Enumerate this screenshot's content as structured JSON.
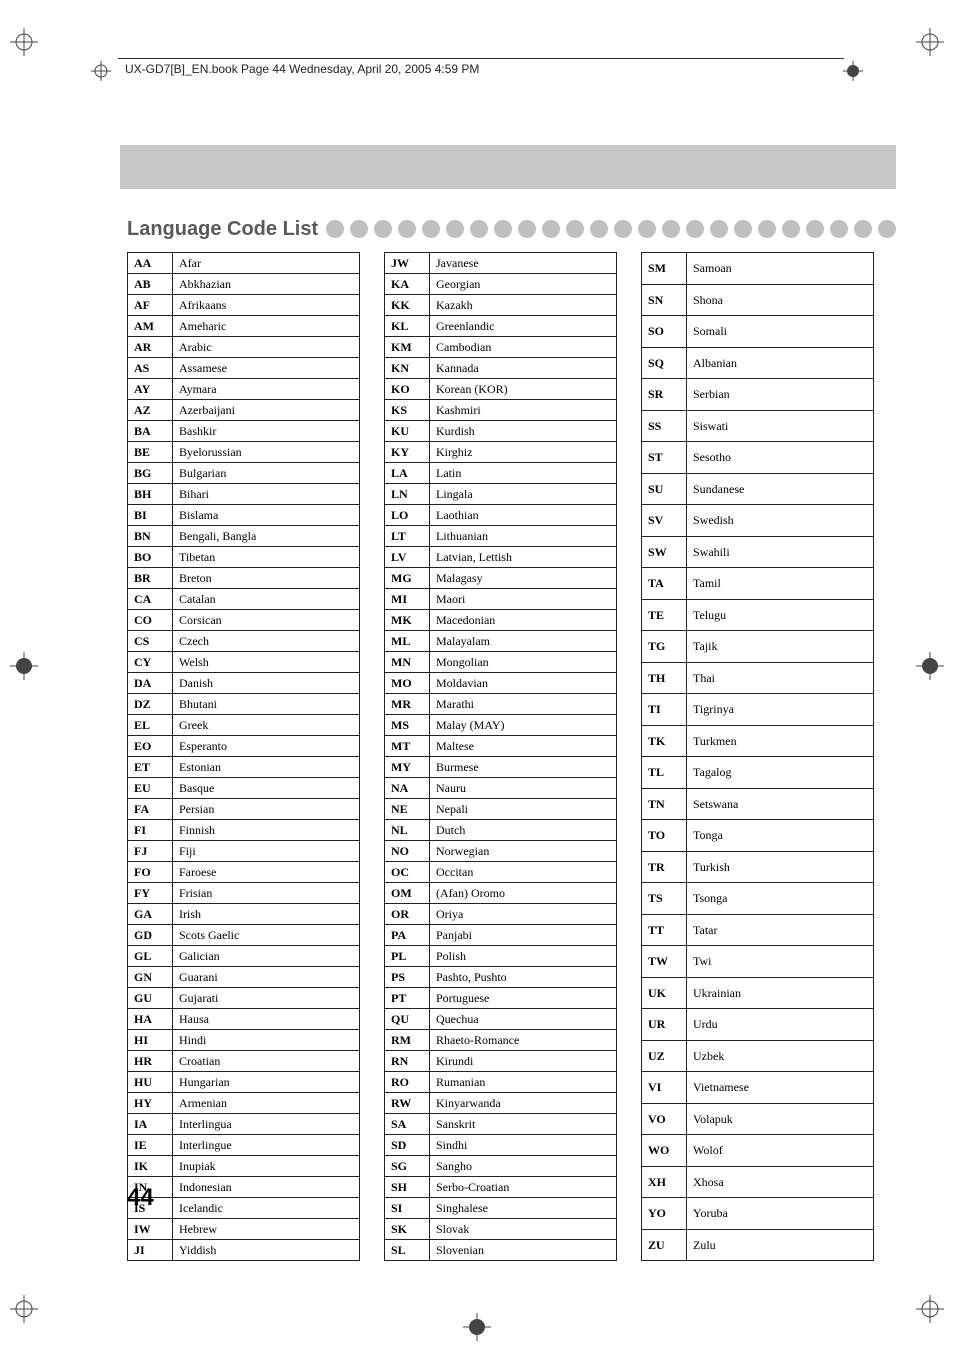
{
  "header_text": "UX-GD7[B]_EN.book   Page 44   Wednesday, April 20, 2005   4:59 PM",
  "section_title": "Language Code List",
  "page_number": "44",
  "tables": [
    {
      "rows": [
        {
          "code": "AA",
          "name": "Afar"
        },
        {
          "code": "AB",
          "name": "Abkhazian"
        },
        {
          "code": "AF",
          "name": "Afrikaans"
        },
        {
          "code": "AM",
          "name": "Ameharic"
        },
        {
          "code": "AR",
          "name": "Arabic"
        },
        {
          "code": "AS",
          "name": "Assamese"
        },
        {
          "code": "AY",
          "name": "Aymara"
        },
        {
          "code": "AZ",
          "name": "Azerbaijani"
        },
        {
          "code": "BA",
          "name": "Bashkir"
        },
        {
          "code": "BE",
          "name": "Byelorussian"
        },
        {
          "code": "BG",
          "name": "Bulgarian"
        },
        {
          "code": "BH",
          "name": "Bihari"
        },
        {
          "code": "BI",
          "name": "Bislama"
        },
        {
          "code": "BN",
          "name": "Bengali, Bangla"
        },
        {
          "code": "BO",
          "name": "Tibetan"
        },
        {
          "code": "BR",
          "name": "Breton"
        },
        {
          "code": "CA",
          "name": "Catalan"
        },
        {
          "code": "CO",
          "name": "Corsican"
        },
        {
          "code": "CS",
          "name": "Czech"
        },
        {
          "code": "CY",
          "name": "Welsh"
        },
        {
          "code": "DA",
          "name": "Danish"
        },
        {
          "code": "DZ",
          "name": "Bhutani"
        },
        {
          "code": "EL",
          "name": "Greek"
        },
        {
          "code": "EO",
          "name": "Esperanto"
        },
        {
          "code": "ET",
          "name": "Estonian"
        },
        {
          "code": "EU",
          "name": "Basque"
        },
        {
          "code": "FA",
          "name": "Persian"
        },
        {
          "code": "FI",
          "name": "Finnish"
        },
        {
          "code": "FJ",
          "name": "Fiji"
        },
        {
          "code": "FO",
          "name": "Faroese"
        },
        {
          "code": "FY",
          "name": "Frisian"
        },
        {
          "code": "GA",
          "name": "Irish"
        },
        {
          "code": "GD",
          "name": "Scots Gaelic"
        },
        {
          "code": "GL",
          "name": "Galician"
        },
        {
          "code": "GN",
          "name": "Guarani"
        },
        {
          "code": "GU",
          "name": "Gujarati"
        },
        {
          "code": "HA",
          "name": "Hausa"
        },
        {
          "code": "HI",
          "name": "Hindi"
        },
        {
          "code": "HR",
          "name": "Croatian"
        },
        {
          "code": "HU",
          "name": "Hungarian"
        },
        {
          "code": "HY",
          "name": "Armenian"
        },
        {
          "code": "IA",
          "name": "Interlingua"
        },
        {
          "code": "IE",
          "name": "Interlingue"
        },
        {
          "code": "IK",
          "name": "Inupiak"
        },
        {
          "code": "IN",
          "name": "Indonesian"
        },
        {
          "code": "IS",
          "name": "Icelandic"
        },
        {
          "code": "IW",
          "name": "Hebrew"
        },
        {
          "code": "JI",
          "name": "Yiddish"
        }
      ]
    },
    {
      "rows": [
        {
          "code": "JW",
          "name": "Javanese"
        },
        {
          "code": "KA",
          "name": "Georgian"
        },
        {
          "code": "KK",
          "name": "Kazakh"
        },
        {
          "code": "KL",
          "name": "Greenlandic"
        },
        {
          "code": "KM",
          "name": "Cambodian"
        },
        {
          "code": "KN",
          "name": "Kannada"
        },
        {
          "code": "KO",
          "name": "Korean (KOR)"
        },
        {
          "code": "KS",
          "name": "Kashmiri"
        },
        {
          "code": "KU",
          "name": "Kurdish"
        },
        {
          "code": "KY",
          "name": "Kirghiz"
        },
        {
          "code": "LA",
          "name": "Latin"
        },
        {
          "code": "LN",
          "name": "Lingala"
        },
        {
          "code": "LO",
          "name": "Laothian"
        },
        {
          "code": "LT",
          "name": "Lithuanian"
        },
        {
          "code": "LV",
          "name": "Latvian, Lettish"
        },
        {
          "code": "MG",
          "name": "Malagasy"
        },
        {
          "code": "MI",
          "name": "Maori"
        },
        {
          "code": "MK",
          "name": "Macedonian"
        },
        {
          "code": "ML",
          "name": "Malayalam"
        },
        {
          "code": "MN",
          "name": "Mongolian"
        },
        {
          "code": "MO",
          "name": "Moldavian"
        },
        {
          "code": "MR",
          "name": "Marathi"
        },
        {
          "code": "MS",
          "name": "Malay (MAY)"
        },
        {
          "code": "MT",
          "name": "Maltese"
        },
        {
          "code": "MY",
          "name": "Burmese"
        },
        {
          "code": "NA",
          "name": "Nauru"
        },
        {
          "code": "NE",
          "name": "Nepali"
        },
        {
          "code": "NL",
          "name": "Dutch"
        },
        {
          "code": "NO",
          "name": "Norwegian"
        },
        {
          "code": "OC",
          "name": "Occitan"
        },
        {
          "code": "OM",
          "name": "(Afan) Oromo"
        },
        {
          "code": "OR",
          "name": "Oriya"
        },
        {
          "code": "PA",
          "name": "Panjabi"
        },
        {
          "code": "PL",
          "name": "Polish"
        },
        {
          "code": "PS",
          "name": "Pashto, Pushto"
        },
        {
          "code": "PT",
          "name": "Portuguese"
        },
        {
          "code": "QU",
          "name": "Quechua"
        },
        {
          "code": "RM",
          "name": "Rhaeto-Romance"
        },
        {
          "code": "RN",
          "name": "Kirundi"
        },
        {
          "code": "RO",
          "name": "Rumanian"
        },
        {
          "code": "RW",
          "name": "Kinyarwanda"
        },
        {
          "code": "SA",
          "name": "Sanskrit"
        },
        {
          "code": "SD",
          "name": "Sindhi"
        },
        {
          "code": "SG",
          "name": "Sangho"
        },
        {
          "code": "SH",
          "name": "Serbo-Croatian"
        },
        {
          "code": "SI",
          "name": "Singhalese"
        },
        {
          "code": "SK",
          "name": "Slovak"
        },
        {
          "code": "SL",
          "name": "Slovenian"
        }
      ]
    },
    {
      "rows": [
        {
          "code": "SM",
          "name": "Samoan"
        },
        {
          "code": "SN",
          "name": "Shona"
        },
        {
          "code": "SO",
          "name": "Somali"
        },
        {
          "code": "SQ",
          "name": "Albanian"
        },
        {
          "code": "SR",
          "name": "Serbian"
        },
        {
          "code": "SS",
          "name": "Siswati"
        },
        {
          "code": "ST",
          "name": "Sesotho"
        },
        {
          "code": "SU",
          "name": "Sundanese"
        },
        {
          "code": "SV",
          "name": "Swedish"
        },
        {
          "code": "SW",
          "name": "Swahili"
        },
        {
          "code": "TA",
          "name": "Tamil"
        },
        {
          "code": "TE",
          "name": "Telugu"
        },
        {
          "code": "TG",
          "name": "Tajik"
        },
        {
          "code": "TH",
          "name": "Thai"
        },
        {
          "code": "TI",
          "name": "Tigrinya"
        },
        {
          "code": "TK",
          "name": "Turkmen"
        },
        {
          "code": "TL",
          "name": "Tagalog"
        },
        {
          "code": "TN",
          "name": "Setswana"
        },
        {
          "code": "TO",
          "name": "Tonga"
        },
        {
          "code": "TR",
          "name": "Turkish"
        },
        {
          "code": "TS",
          "name": "Tsonga"
        },
        {
          "code": "TT",
          "name": "Tatar"
        },
        {
          "code": "TW",
          "name": "Twi"
        },
        {
          "code": "UK",
          "name": "Ukrainian"
        },
        {
          "code": "UR",
          "name": "Urdu"
        },
        {
          "code": "UZ",
          "name": "Uzbek"
        },
        {
          "code": "VI",
          "name": "Vietnamese"
        },
        {
          "code": "VO",
          "name": "Volapuk"
        },
        {
          "code": "WO",
          "name": "Wolof"
        },
        {
          "code": "XH",
          "name": "Xhosa"
        },
        {
          "code": "YO",
          "name": "Yoruba"
        },
        {
          "code": "ZU",
          "name": "Zulu"
        }
      ]
    }
  ],
  "dot_count": 27,
  "colors": {
    "band": "#c8c8c8",
    "dot": "#c0c0c0",
    "title": "#5a5a5a",
    "border": "#222222"
  }
}
